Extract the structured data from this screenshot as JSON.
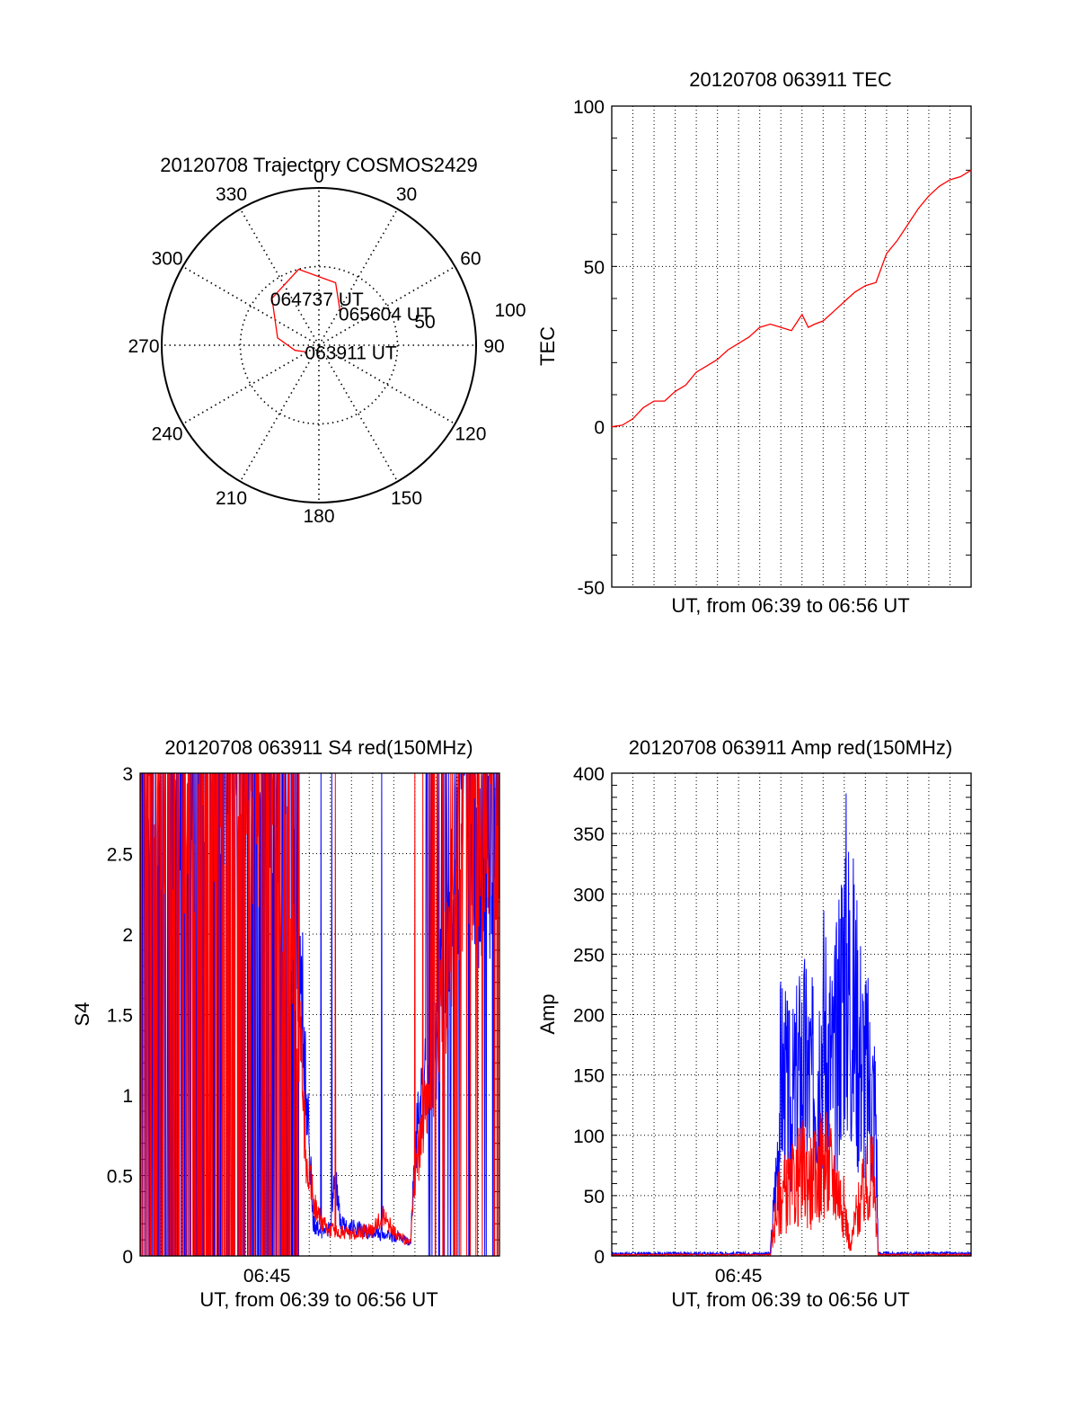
{
  "chart_data": [
    {
      "type": "polar-trajectory",
      "title": "20120708 Trajectory COSMOS2429",
      "azimuth_labels": [
        "0",
        "30",
        "60",
        "90",
        "120",
        "150",
        "180",
        "210",
        "240",
        "270",
        "300",
        "330"
      ],
      "radial_labels": [
        "50",
        "100"
      ],
      "series": [
        {
          "color": "#ff0000",
          "points": [
            [
              241,
              82
            ],
            [
              258,
              76
            ],
            [
              280,
              66
            ],
            [
              315,
              52
            ],
            [
              345,
              45
            ],
            [
              15,
              53
            ],
            [
              34,
              68
            ]
          ]
        }
      ],
      "annotations": [
        {
          "text": "063911 UT",
          "azimuth": 241,
          "elevation": 82
        },
        {
          "text": "064737 UT",
          "azimuth": 315,
          "elevation": 52
        },
        {
          "text": "065604 UT",
          "azimuth": 34,
          "elevation": 68
        }
      ]
    },
    {
      "type": "line",
      "title": "20120708 063911 TEC",
      "xlabel": "UT, from 06:39 to 06:56 UT",
      "ylabel": "TEC",
      "xlim": [
        0,
        17
      ],
      "ylim": [
        -50,
        100
      ],
      "yticks": [
        "-50",
        "0",
        "50",
        "100"
      ],
      "grid": true,
      "series": [
        {
          "color": "#ff0000",
          "x": [
            0,
            0.5,
            1.0,
            1.5,
            2.0,
            2.5,
            3.0,
            3.5,
            4.0,
            4.5,
            5.0,
            5.5,
            6.0,
            6.5,
            7.0,
            7.5,
            8.0,
            8.5,
            9.0,
            9.3,
            9.6,
            10.0,
            10.5,
            11.0,
            11.5,
            12.0,
            12.5,
            13.0,
            13.5,
            14.0,
            14.5,
            15.0,
            15.5,
            16.0,
            16.5,
            17.0
          ],
          "y": [
            0,
            0.5,
            2.5,
            6,
            8,
            8,
            11,
            13,
            17,
            19,
            21,
            24,
            26,
            28,
            31,
            32,
            31,
            30,
            35,
            31,
            32,
            33,
            36,
            39,
            42,
            44,
            45,
            54,
            58,
            63,
            68,
            72,
            75,
            77,
            78,
            80
          ]
        }
      ]
    },
    {
      "type": "line",
      "title": "20120708 063911 S4 red(150MHz)",
      "xlabel": "UT, from 06:39 to 06:56 UT",
      "ylabel": "S4",
      "xlim": [
        0,
        17
      ],
      "ylim": [
        0,
        3
      ],
      "yticks": [
        "0",
        "0.5",
        "1",
        "1.5",
        "2",
        "2.5",
        "3"
      ],
      "xtick_labels": [
        {
          "x": 6,
          "label": "06:45"
        }
      ],
      "grid": true,
      "series": [
        {
          "color": "#0000ff",
          "x": [
            0,
            7.0,
            7.5,
            7.6,
            7.8,
            8.2,
            8.5,
            8.8,
            9.0,
            9.2,
            9.5,
            10,
            11,
            12,
            12.5,
            12.8,
            13.0,
            13.5,
            14.0,
            14.5,
            15.0,
            15.5,
            16.0,
            16.5,
            17.0
          ],
          "y": [
            3.0,
            3.0,
            1.5,
            1.9,
            1.2,
            0.2,
            0.16,
            0.14,
            0.18,
            0.5,
            0.2,
            0.18,
            0.14,
            0.12,
            0.1,
            0.08,
            0.7,
            1.1,
            1.3,
            2.0,
            2.6,
            3.0,
            2.3,
            2.5,
            3.0
          ]
        },
        {
          "color": "#ff0000",
          "x": [
            0,
            6.0,
            6.8,
            7.3,
            7.6,
            7.8,
            8.0,
            8.3,
            8.6,
            9.0,
            10,
            11,
            11.5,
            12,
            12.5,
            12.8,
            13.0,
            13.5,
            14.0,
            14.5,
            15.0,
            15.5,
            16.0,
            16.5,
            17.0
          ],
          "y": [
            3.0,
            3.0,
            2.4,
            1.7,
            1.3,
            0.7,
            0.5,
            0.3,
            0.2,
            0.16,
            0.14,
            0.16,
            0.25,
            0.15,
            0.1,
            0.08,
            0.5,
            0.9,
            1.2,
            1.8,
            2.4,
            3.0,
            2.2,
            2.6,
            3.0
          ]
        }
      ]
    },
    {
      "type": "line",
      "title": "20120708 063911 Amp red(150MHz)",
      "xlabel": "UT, from 06:39 to 06:56 UT",
      "ylabel": "Amp",
      "xlim": [
        0,
        17
      ],
      "ylim": [
        0,
        400
      ],
      "yticks": [
        "0",
        "50",
        "100",
        "150",
        "200",
        "250",
        "300",
        "350",
        "400"
      ],
      "xtick_labels": [
        {
          "x": 6,
          "label": "06:45"
        }
      ],
      "grid": true,
      "series": [
        {
          "color": "#0000ff",
          "x": [
            0,
            7.5,
            7.8,
            8.0,
            8.5,
            9.0,
            9.5,
            10.0,
            10.5,
            11.0,
            11.5,
            12.0,
            12.5,
            12.6,
            13.0,
            17.0
          ],
          "y": [
            2,
            2,
            70,
            150,
            120,
            160,
            140,
            190,
            150,
            250,
            200,
            150,
            120,
            2,
            2,
            2
          ]
        },
        {
          "color": "#ff0000",
          "x": [
            0,
            7.5,
            7.8,
            8.0,
            8.5,
            9.0,
            9.5,
            10.0,
            10.5,
            11.0,
            11.3,
            11.5,
            12.0,
            12.3,
            12.5,
            12.6,
            17.0
          ],
          "y": [
            1,
            1,
            40,
            50,
            55,
            70,
            60,
            80,
            65,
            40,
            5,
            30,
            55,
            70,
            40,
            1,
            1
          ]
        }
      ]
    }
  ]
}
